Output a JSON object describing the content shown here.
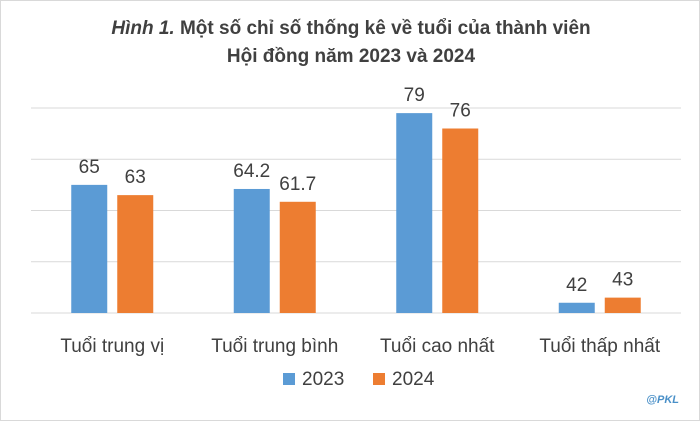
{
  "title": {
    "figure_label": "Hình 1.",
    "line1": "Một số chỉ số thống kê về tuổi của thành viên",
    "line2": "Hội đồng năm 2023 và 2024"
  },
  "watermark": "@PKL",
  "chart_data": {
    "type": "bar",
    "title": "Hình 1. Một số chỉ số thống kê về tuổi của thành viên Hội đồng năm 2023 và 2024",
    "categories": [
      "Tuổi trung vị",
      "Tuổi trung bình",
      "Tuổi cao nhất",
      "Tuổi thấp nhất"
    ],
    "series": [
      {
        "name": "2023",
        "values": [
          65,
          64.2,
          79,
          42
        ],
        "color": "#5b9bd5"
      },
      {
        "name": "2024",
        "values": [
          63,
          61.7,
          76,
          43
        ],
        "color": "#ed7d31"
      }
    ],
    "ylim": [
      40,
      80
    ],
    "grid": true,
    "legend": "bottom"
  }
}
